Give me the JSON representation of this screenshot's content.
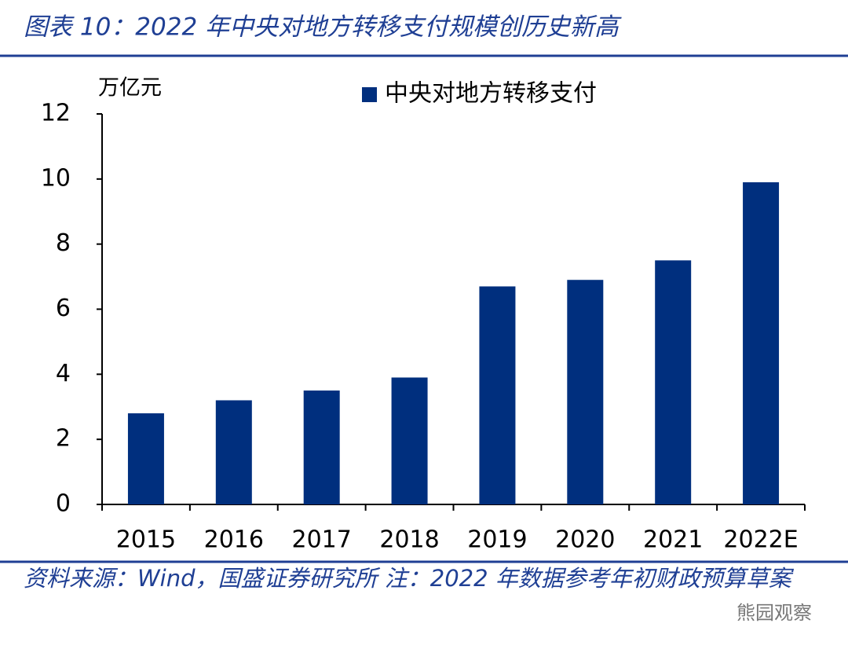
{
  "chart_data": {
    "type": "bar",
    "title": "图表 10：2022 年中央对地方转移支付规模创历史新高",
    "y_axis_label": "万亿元",
    "categories": [
      "2015",
      "2016",
      "2017",
      "2018",
      "2019",
      "2020",
      "2021",
      "2022E"
    ],
    "series": [
      {
        "name": "中央对地方转移支付",
        "color": "#002f7e",
        "values": [
          2.8,
          3.2,
          3.5,
          3.9,
          6.7,
          6.9,
          7.5,
          9.9
        ]
      }
    ],
    "ylim": [
      0,
      12
    ],
    "yticks": [
      0,
      2,
      4,
      6,
      8,
      10,
      12
    ],
    "grid": false,
    "legend": "top"
  },
  "source": "资料来源：Wind，国盛证券研究所 注：2022 年数据参考年初财政预算草案",
  "watermark": "熊园观察"
}
